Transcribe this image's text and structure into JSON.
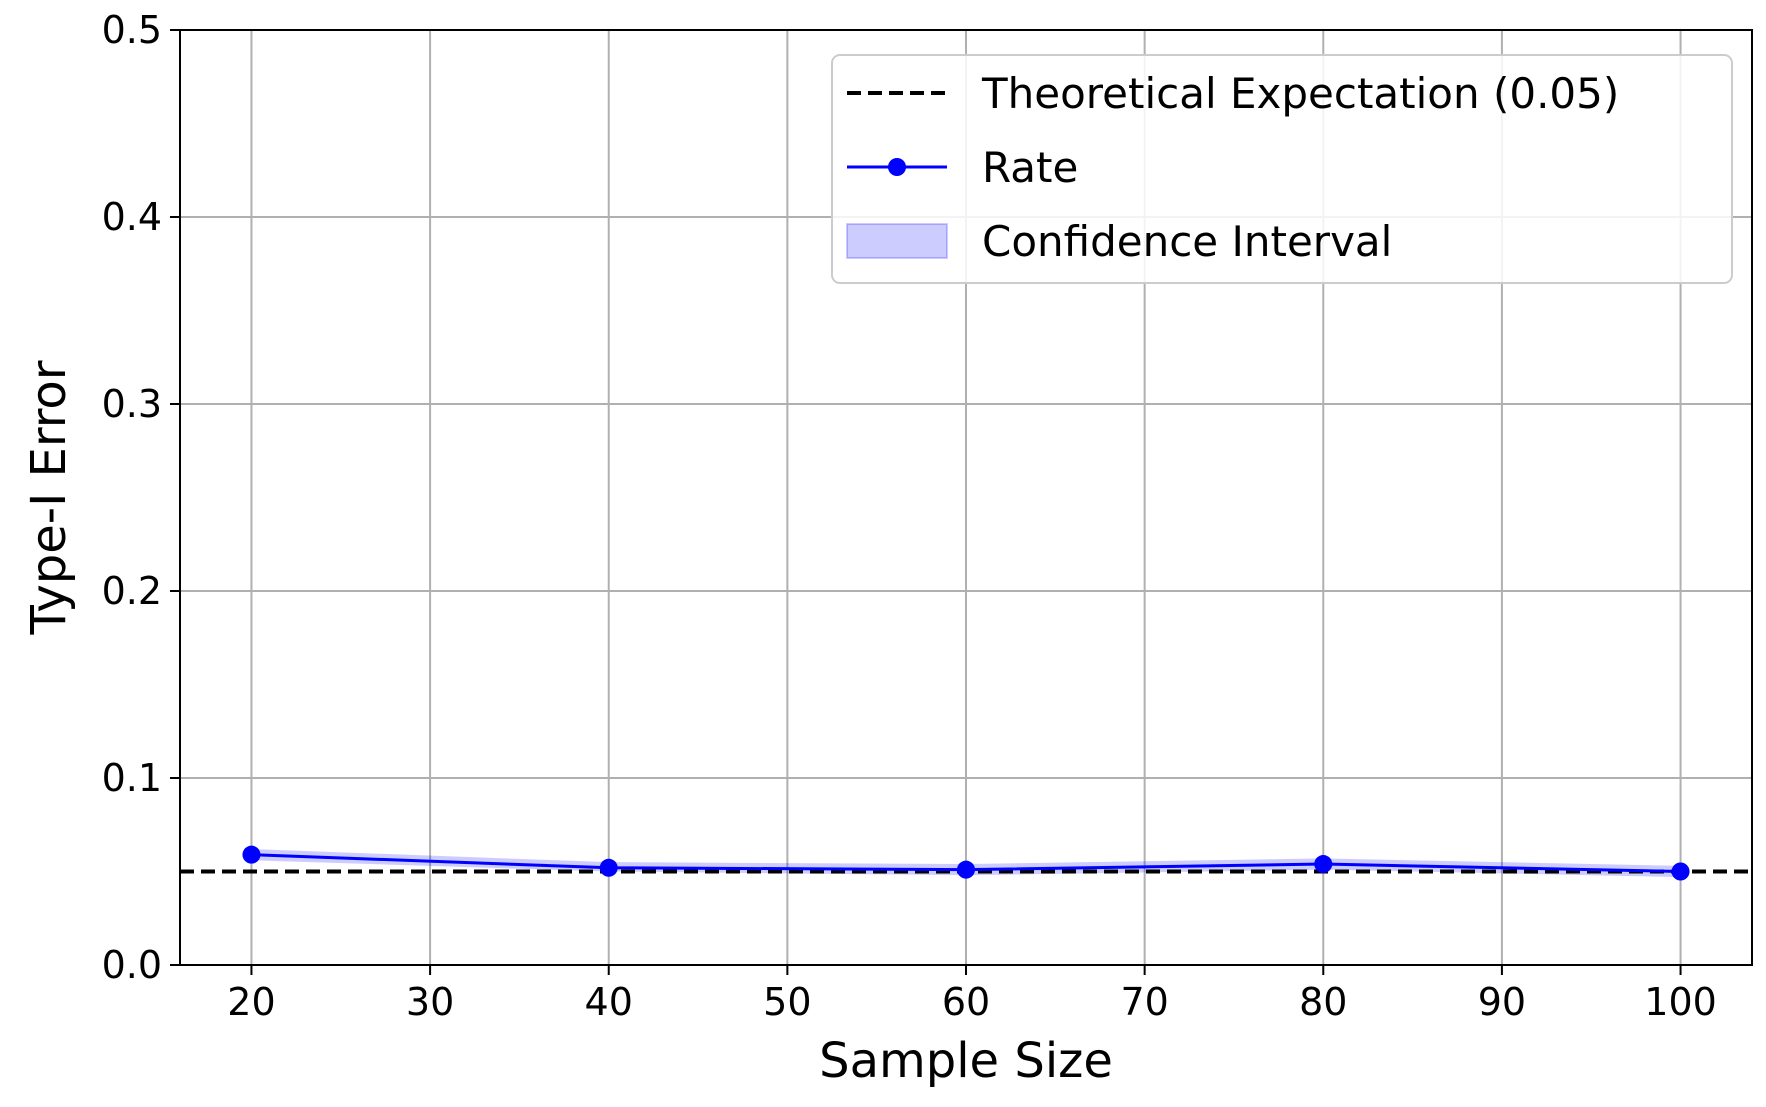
{
  "chart_data": {
    "type": "line",
    "title": "",
    "xlabel": "Sample Size",
    "ylabel": "Type-I Error",
    "xlim": [
      16,
      104
    ],
    "ylim": [
      0.0,
      0.5
    ],
    "x_ticks": [
      "20",
      "30",
      "40",
      "50",
      "60",
      "70",
      "80",
      "90",
      "100"
    ],
    "y_ticks": [
      "0.0",
      "0.1",
      "0.2",
      "0.3",
      "0.4",
      "0.5"
    ],
    "grid": true,
    "legend_position": "top-right",
    "x": [
      20,
      40,
      60,
      80,
      100
    ],
    "series": [
      {
        "name": "Rate",
        "values": [
          0.059,
          0.052,
          0.051,
          0.054,
          0.05
        ],
        "ci_lower": [
          0.056,
          0.05,
          0.048,
          0.051,
          0.047
        ],
        "ci_upper": [
          0.062,
          0.055,
          0.054,
          0.057,
          0.053
        ],
        "color": "#0000ff"
      }
    ],
    "reference_line": {
      "name": "Theoretical Expectation (0.05)",
      "value": 0.05,
      "color": "#000000",
      "style": "dashed"
    },
    "legend": {
      "entries": [
        "Theoretical Expectation (0.05)",
        "Rate",
        "Confidence Interval"
      ]
    }
  }
}
